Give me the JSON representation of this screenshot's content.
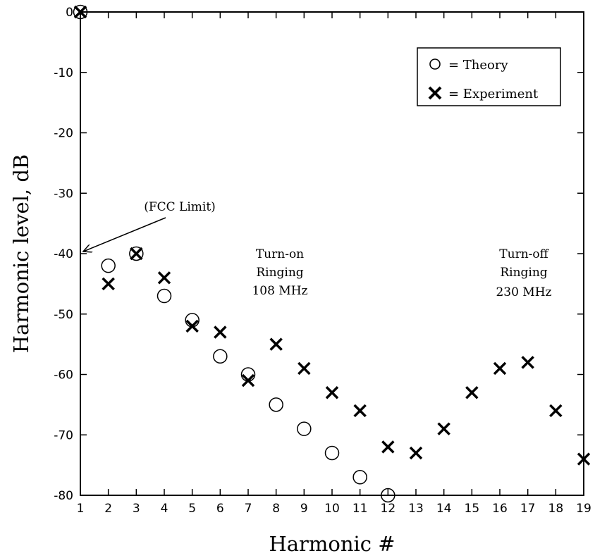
{
  "chart_data": {
    "type": "scatter",
    "xlabel": "Harmonic #",
    "ylabel": "Harmonic level, dB",
    "xlim": [
      1,
      19
    ],
    "ylim": [
      -80,
      0
    ],
    "xticks": [
      1,
      2,
      3,
      4,
      5,
      6,
      7,
      8,
      9,
      10,
      11,
      12,
      13,
      14,
      15,
      16,
      17,
      18,
      19
    ],
    "yticks": [
      0,
      -10,
      -20,
      -30,
      -40,
      -50,
      -60,
      -70,
      -80
    ],
    "grid": false,
    "legend_position": "top-right",
    "series": [
      {
        "name": "= Theory",
        "marker": "circle",
        "x": [
          1,
          2,
          3,
          4,
          5,
          6,
          7,
          8,
          9,
          10,
          11,
          12
        ],
        "y": [
          0,
          -42,
          -40,
          -47,
          -51,
          -57,
          -60,
          -65,
          -69,
          -73,
          -77,
          -80
        ]
      },
      {
        "name": "= Experiment",
        "marker": "x",
        "x": [
          1,
          2,
          3,
          4,
          5,
          6,
          7,
          8,
          9,
          10,
          11,
          12,
          13,
          14,
          15,
          16,
          17,
          18,
          19
        ],
        "y": [
          0,
          -45,
          -40,
          -44,
          -52,
          -53,
          -61,
          -55,
          -59,
          -63,
          -66,
          -72,
          -73,
          -69,
          -63,
          -59,
          -58,
          -66,
          -74
        ]
      }
    ],
    "annotations": {
      "fcc": "(FCC Limit)",
      "turn_on": [
        "Turn-on",
        "Ringing",
        "108 MHz"
      ],
      "turn_off": [
        "Turn-off",
        "Ringing",
        "230 MHz"
      ]
    }
  }
}
